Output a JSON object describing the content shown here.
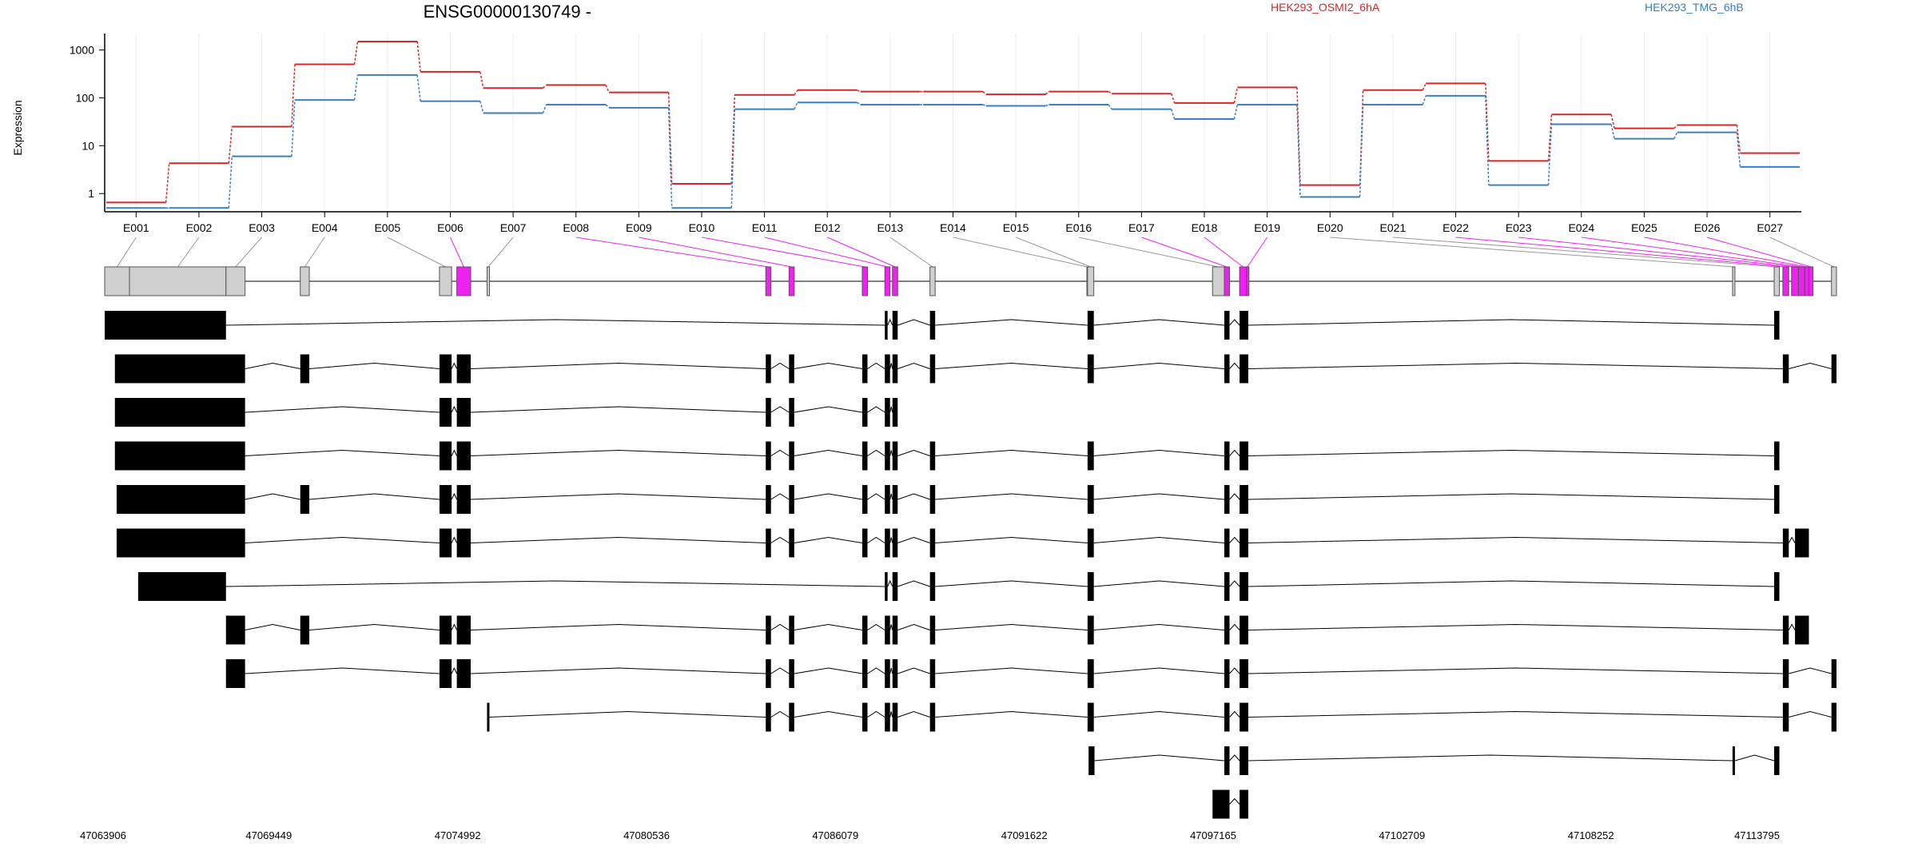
{
  "chart_data": {
    "type": "line",
    "title": "ENSG00000130749 -",
    "ylabel": "Expression",
    "y_scale": "log",
    "y_ticks": [
      "1",
      "10",
      "100",
      "1000"
    ],
    "grid": "vertical lines at exon centers",
    "legend_placement": "top-right",
    "categories": [
      "E001",
      "E002",
      "E003",
      "E004",
      "E005",
      "E006",
      "E007",
      "E008",
      "E009",
      "E010",
      "E011",
      "E012",
      "E013",
      "E014",
      "E015",
      "E016",
      "E017",
      "E018",
      "E019",
      "E020",
      "E021",
      "E022",
      "E023",
      "E024",
      "E025",
      "E026",
      "E027"
    ],
    "series": [
      {
        "name": "HEK293_OSMI2_6hA",
        "color": "#d62728",
        "values": [
          0.65,
          4.3,
          25,
          500,
          1500,
          350,
          160,
          185,
          130,
          1.6,
          115,
          145,
          135,
          135,
          118,
          135,
          122,
          78,
          165,
          1.5,
          145,
          200,
          4.8,
          45,
          23,
          27,
          7
        ]
      },
      {
        "name": "HEK293_TMG_6hB",
        "color": "#3a7fc1",
        "values": [
          0.5,
          0.5,
          6,
          90,
          300,
          85,
          48,
          72,
          62,
          0.5,
          58,
          80,
          72,
          72,
          68,
          72,
          58,
          36,
          72,
          0.85,
          72,
          110,
          1.5,
          28,
          14,
          19,
          3.6
        ]
      }
    ],
    "gene_model": {
      "coord_range": [
        47063906,
        47113795
      ],
      "coord_ticks": [
        "47063906",
        "47069449",
        "47074992",
        "47080536",
        "47086079",
        "47091622",
        "47097165",
        "47102709",
        "47108252",
        "47113795"
      ],
      "highlight_color": "#ee22ee",
      "exons": [
        {
          "id": "E001",
          "start": 47063906,
          "end": 47064620,
          "highlight": false
        },
        {
          "id": "E002",
          "start": 47064620,
          "end": 47067400,
          "highlight": false
        },
        {
          "id": "E003",
          "start": 47067400,
          "end": 47067950,
          "highlight": false
        },
        {
          "id": "E004",
          "start": 47069540,
          "end": 47069800,
          "highlight": false
        },
        {
          "id": "E005",
          "start": 47073550,
          "end": 47073900,
          "highlight": false
        },
        {
          "id": "E006",
          "start": 47074050,
          "end": 47074450,
          "highlight": true
        },
        {
          "id": "E007",
          "start": 47074920,
          "end": 47074990,
          "highlight": false
        },
        {
          "id": "E008",
          "start": 47082950,
          "end": 47083100,
          "highlight": true
        },
        {
          "id": "E009",
          "start": 47083620,
          "end": 47083770,
          "highlight": true
        },
        {
          "id": "E010",
          "start": 47085730,
          "end": 47085880,
          "highlight": true
        },
        {
          "id": "E011",
          "start": 47086380,
          "end": 47086530,
          "highlight": true
        },
        {
          "id": "E012",
          "start": 47086600,
          "end": 47086750,
          "highlight": true
        },
        {
          "id": "E013",
          "start": 47087680,
          "end": 47087830,
          "highlight": false
        },
        {
          "id": "E014",
          "start": 47092200,
          "end": 47092220,
          "highlight": false
        },
        {
          "id": "E015",
          "start": 47092220,
          "end": 47092400,
          "highlight": false
        },
        {
          "id": "E016",
          "start": 47095820,
          "end": 47096160,
          "highlight": false
        },
        {
          "id": "E017",
          "start": 47096160,
          "end": 47096310,
          "highlight": true
        },
        {
          "id": "E018",
          "start": 47096600,
          "end": 47096800,
          "highlight": true
        },
        {
          "id": "E019",
          "start": 47096800,
          "end": 47096850,
          "highlight": true
        },
        {
          "id": "E020",
          "start": 47110800,
          "end": 47110870,
          "highlight": false
        },
        {
          "id": "E021",
          "start": 47112000,
          "end": 47112150,
          "highlight": false
        },
        {
          "id": "E022",
          "start": 47112250,
          "end": 47112420,
          "highlight": true
        },
        {
          "id": "E023",
          "start": 47112500,
          "end": 47112700,
          "highlight": true
        },
        {
          "id": "E024",
          "start": 47112700,
          "end": 47112880,
          "highlight": true
        },
        {
          "id": "E025",
          "start": 47112880,
          "end": 47113000,
          "highlight": true
        },
        {
          "id": "E026",
          "start": 47113000,
          "end": 47113120,
          "highlight": true
        },
        {
          "id": "E027",
          "start": 47113650,
          "end": 47113795,
          "highlight": false
        }
      ],
      "transcripts": [
        {
          "exons": [
            [
              47063906,
              47067400
            ],
            [
              47086380,
              47086460
            ],
            [
              47086600,
              47086750
            ],
            [
              47087680,
              47087830
            ],
            [
              47092220,
              47092400
            ],
            [
              47096160,
              47096310
            ],
            [
              47096600,
              47096850
            ],
            [
              47112000,
              47112150
            ]
          ]
        },
        {
          "exons": [
            [
              47064200,
              47067950
            ],
            [
              47069540,
              47069800
            ],
            [
              47073550,
              47073900
            ],
            [
              47074050,
              47074450
            ],
            [
              47082950,
              47083100
            ],
            [
              47083620,
              47083770
            ],
            [
              47085730,
              47085880
            ],
            [
              47086380,
              47086530
            ],
            [
              47086600,
              47086750
            ],
            [
              47087680,
              47087830
            ],
            [
              47092220,
              47092400
            ],
            [
              47096160,
              47096310
            ],
            [
              47096600,
              47096850
            ],
            [
              47112250,
              47112420
            ],
            [
              47113650,
              47113795
            ]
          ]
        },
        {
          "exons": [
            [
              47064200,
              47067950
            ],
            [
              47073550,
              47073900
            ],
            [
              47074050,
              47074450
            ],
            [
              47082950,
              47083100
            ],
            [
              47083620,
              47083770
            ],
            [
              47085730,
              47085880
            ],
            [
              47086380,
              47086530
            ],
            [
              47086600,
              47086750
            ]
          ]
        },
        {
          "exons": [
            [
              47064200,
              47067950
            ],
            [
              47073550,
              47073900
            ],
            [
              47074050,
              47074450
            ],
            [
              47082950,
              47083100
            ],
            [
              47083620,
              47083770
            ],
            [
              47085730,
              47085880
            ],
            [
              47086380,
              47086530
            ],
            [
              47086600,
              47086750
            ],
            [
              47087680,
              47087830
            ],
            [
              47092220,
              47092400
            ],
            [
              47096160,
              47096310
            ],
            [
              47096600,
              47096850
            ],
            [
              47112000,
              47112150
            ]
          ]
        },
        {
          "exons": [
            [
              47064250,
              47067950
            ],
            [
              47069540,
              47069800
            ],
            [
              47073550,
              47073900
            ],
            [
              47074050,
              47074450
            ],
            [
              47082950,
              47083100
            ],
            [
              47083620,
              47083770
            ],
            [
              47085730,
              47085880
            ],
            [
              47086380,
              47086530
            ],
            [
              47086600,
              47086750
            ],
            [
              47087680,
              47087830
            ],
            [
              47092220,
              47092400
            ],
            [
              47096160,
              47096310
            ],
            [
              47096600,
              47096850
            ],
            [
              47112000,
              47112150
            ]
          ]
        },
        {
          "exons": [
            [
              47064250,
              47067950
            ],
            [
              47073550,
              47073900
            ],
            [
              47074050,
              47074450
            ],
            [
              47082950,
              47083100
            ],
            [
              47083620,
              47083770
            ],
            [
              47085730,
              47085880
            ],
            [
              47086380,
              47086530
            ],
            [
              47086600,
              47086750
            ],
            [
              47087680,
              47087830
            ],
            [
              47092220,
              47092400
            ],
            [
              47096160,
              47096310
            ],
            [
              47096600,
              47096850
            ],
            [
              47112250,
              47112420
            ],
            [
              47112600,
              47113000
            ]
          ]
        },
        {
          "exons": [
            [
              47064870,
              47067400
            ],
            [
              47086380,
              47086460
            ],
            [
              47086600,
              47086750
            ],
            [
              47087680,
              47087830
            ],
            [
              47092220,
              47092400
            ],
            [
              47096160,
              47096310
            ],
            [
              47096600,
              47096850
            ],
            [
              47112000,
              47112150
            ]
          ]
        },
        {
          "exons": [
            [
              47067400,
              47067950
            ],
            [
              47069540,
              47069800
            ],
            [
              47073550,
              47073900
            ],
            [
              47074050,
              47074450
            ],
            [
              47082950,
              47083100
            ],
            [
              47083620,
              47083770
            ],
            [
              47085730,
              47085880
            ],
            [
              47086380,
              47086530
            ],
            [
              47086600,
              47086750
            ],
            [
              47087680,
              47087830
            ],
            [
              47092220,
              47092400
            ],
            [
              47096160,
              47096310
            ],
            [
              47096600,
              47096850
            ],
            [
              47112250,
              47112420
            ],
            [
              47112600,
              47113000
            ]
          ]
        },
        {
          "exons": [
            [
              47067400,
              47067950
            ],
            [
              47073550,
              47073900
            ],
            [
              47074050,
              47074450
            ],
            [
              47082950,
              47083100
            ],
            [
              47083620,
              47083770
            ],
            [
              47085730,
              47085880
            ],
            [
              47086380,
              47086530
            ],
            [
              47086600,
              47086750
            ],
            [
              47087680,
              47087830
            ],
            [
              47092220,
              47092400
            ],
            [
              47096160,
              47096310
            ],
            [
              47096600,
              47096850
            ],
            [
              47112250,
              47112420
            ],
            [
              47113650,
              47113795
            ]
          ]
        },
        {
          "exons": [
            [
              47074920,
              47074990
            ],
            [
              47082950,
              47083100
            ],
            [
              47083620,
              47083770
            ],
            [
              47085730,
              47085880
            ],
            [
              47086380,
              47086530
            ],
            [
              47086600,
              47086750
            ],
            [
              47087680,
              47087830
            ],
            [
              47092220,
              47092400
            ],
            [
              47096160,
              47096310
            ],
            [
              47096600,
              47096850
            ],
            [
              47112250,
              47112420
            ],
            [
              47113650,
              47113795
            ]
          ]
        },
        {
          "exons": [
            [
              47092250,
              47092420
            ],
            [
              47096160,
              47096310
            ],
            [
              47096600,
              47096850
            ],
            [
              47110800,
              47110870
            ],
            [
              47112000,
              47112150
            ]
          ]
        },
        {
          "exons": [
            [
              47095820,
              47096160
            ],
            [
              47096160,
              47096310
            ],
            [
              47096600,
              47096850
            ]
          ]
        }
      ]
    }
  }
}
